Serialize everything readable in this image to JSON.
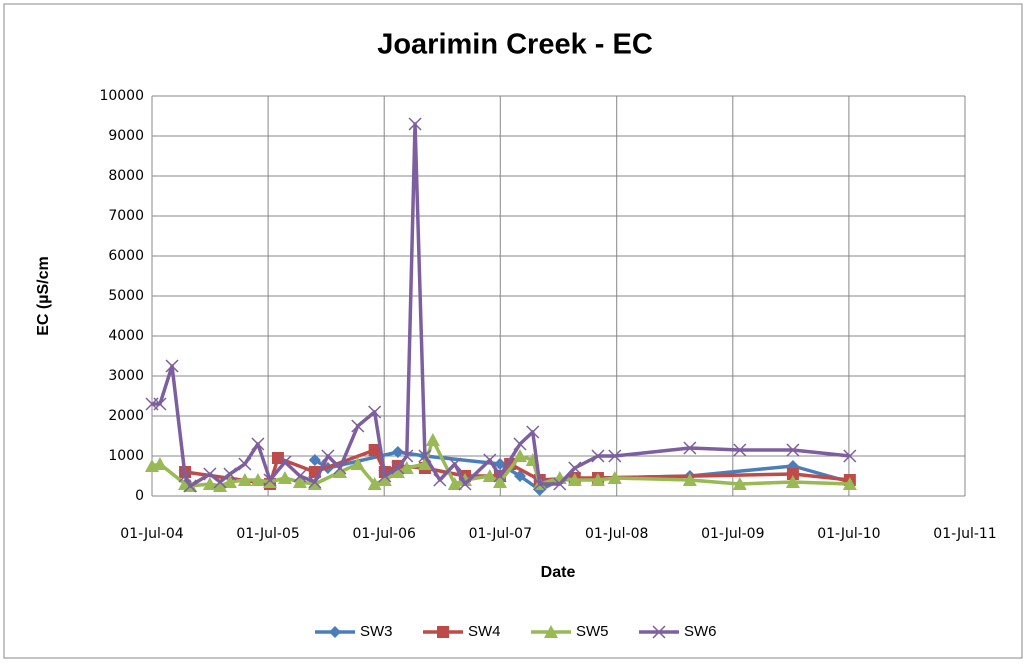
{
  "chart_data": {
    "type": "line",
    "title": "Joarimin Creek - EC",
    "xlabel": "Date",
    "ylabel": "EC  (µS/cm",
    "xlim": [
      "2004-07-01",
      "2011-07-01"
    ],
    "xticks": [
      {
        "value": "2004-07-01",
        "label": "01-Jul-04"
      },
      {
        "value": "2005-07-01",
        "label": "01-Jul-05"
      },
      {
        "value": "2006-07-01",
        "label": "01-Jul-06"
      },
      {
        "value": "2007-07-01",
        "label": "01-Jul-07"
      },
      {
        "value": "2008-07-01",
        "label": "01-Jul-08"
      },
      {
        "value": "2009-07-01",
        "label": "01-Jul-09"
      },
      {
        "value": "2010-07-01",
        "label": "01-Jul-10"
      },
      {
        "value": "2011-07-01",
        "label": "01-Jul-11"
      }
    ],
    "ylim": [
      0,
      10000
    ],
    "yticks": [
      0,
      1000,
      2000,
      3000,
      4000,
      5000,
      6000,
      7000,
      8000,
      9000,
      10000
    ],
    "grid": true,
    "legend": "bottom",
    "series": [
      {
        "name": "SW3",
        "color": "#4a7ebb",
        "marker": "diamond",
        "x": [
          "2005-11-25",
          "2006-01-05",
          "2006-08-13",
          "2006-11-06",
          "2007-06-30",
          "2007-09-01",
          "2007-11-02",
          "2008-01-04",
          "2008-05-03",
          "2009-02-16",
          "2010-01-06",
          "2010-07-04"
        ],
        "values": [
          900,
          700,
          1100,
          1000,
          800,
          500,
          150,
          400,
          450,
          500,
          750,
          350
        ]
      },
      {
        "name": "SW4",
        "color": "#be4b48",
        "marker": "square",
        "x": [
          "2004-10-13",
          "2005-07-07",
          "2005-08-01",
          "2005-11-25",
          "2006-06-01",
          "2006-07-03",
          "2006-08-13",
          "2006-11-06",
          "2007-03-12",
          "2007-06-30",
          "2007-08-01",
          "2007-11-02",
          "2008-02-20",
          "2008-05-03",
          "2010-01-06",
          "2010-07-04"
        ],
        "values": [
          600,
          300,
          950,
          600,
          1150,
          600,
          750,
          700,
          500,
          500,
          800,
          400,
          450,
          450,
          550,
          400
        ]
      },
      {
        "name": "SW5",
        "color": "#98b954",
        "marker": "triangle",
        "x": [
          "2004-07-01",
          "2004-07-26",
          "2004-10-13",
          "2004-10-29",
          "2004-12-30",
          "2005-01-31",
          "2005-03-03",
          "2005-04-19",
          "2005-05-30",
          "2005-07-07",
          "2005-08-23",
          "2005-10-09",
          "2005-11-25",
          "2006-02-12",
          "2006-04-09",
          "2006-06-01",
          "2006-07-03",
          "2006-08-13",
          "2006-09-10",
          "2006-11-06",
          "2006-12-01",
          "2007-02-08",
          "2007-03-12",
          "2007-05-29",
          "2007-06-30",
          "2007-09-01",
          "2007-10-11",
          "2007-11-02",
          "2008-01-04",
          "2008-02-20",
          "2008-05-03",
          "2008-06-25",
          "2009-02-16",
          "2009-07-23",
          "2010-01-06",
          "2010-07-04"
        ],
        "values": [
          750,
          800,
          300,
          250,
          300,
          250,
          350,
          400,
          400,
          350,
          450,
          350,
          300,
          600,
          800,
          300,
          400,
          600,
          700,
          800,
          1400,
          300,
          400,
          500,
          350,
          1000,
          900,
          300,
          450,
          400,
          400,
          450,
          400,
          300,
          350,
          300
        ]
      },
      {
        "name": "SW6",
        "color": "#7d5fa0",
        "marker": "x",
        "x": [
          "2004-07-01",
          "2004-07-26",
          "2004-09-02",
          "2004-10-13",
          "2004-10-29",
          "2004-12-30",
          "2005-01-31",
          "2005-03-03",
          "2005-04-19",
          "2005-05-30",
          "2005-07-07",
          "2005-08-23",
          "2005-10-09",
          "2005-11-25",
          "2006-01-05",
          "2006-02-12",
          "2006-04-09",
          "2006-06-01",
          "2006-07-03",
          "2006-08-13",
          "2006-09-10",
          "2006-10-06",
          "2006-11-06",
          "2006-12-23",
          "2007-02-08",
          "2007-03-12",
          "2007-05-29",
          "2007-06-30",
          "2007-09-01",
          "2007-10-11",
          "2007-11-02",
          "2008-01-04",
          "2008-02-20",
          "2008-05-03",
          "2008-06-25",
          "2009-02-16",
          "2009-07-23",
          "2010-01-06",
          "2010-07-04"
        ],
        "values": [
          2300,
          2300,
          3250,
          500,
          250,
          550,
          350,
          550,
          800,
          1300,
          400,
          850,
          500,
          350,
          1000,
          700,
          1750,
          2100,
          500,
          700,
          1000,
          9300,
          1000,
          400,
          800,
          300,
          900,
          500,
          1300,
          1600,
          300,
          300,
          700,
          1000,
          1000,
          1200,
          1150,
          1150,
          1000
        ]
      }
    ]
  }
}
